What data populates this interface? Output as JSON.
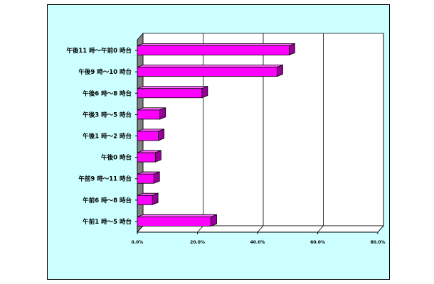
{
  "chart_data": {
    "type": "bar",
    "orientation": "horizontal",
    "title": "",
    "xlabel": "",
    "ylabel": "",
    "categories": [
      "午後11 時～午前0 時台",
      "午後9 時～10 時台",
      "午後6 時～8 時台",
      "午後3 時～5 時台",
      "午後1 時～2 時台",
      "午後0 時台",
      "午前9 時～11 時台",
      "午前6 時～8 時台",
      "午前1 時～5 時台"
    ],
    "values": [
      50.5,
      46.5,
      21.5,
      7.5,
      7.0,
      6.0,
      5.5,
      5.0,
      24.5
    ],
    "unit": "%",
    "xlim": [
      0,
      80
    ],
    "xticks": [
      0,
      20,
      40,
      60,
      80
    ],
    "xtick_labels": [
      "0.0%",
      "20.0%",
      "40.0%",
      "60.0%",
      "80.0%"
    ],
    "grid": true,
    "legend": "none",
    "bar_color": "#ff00ff",
    "background_color": "#ccffff"
  }
}
